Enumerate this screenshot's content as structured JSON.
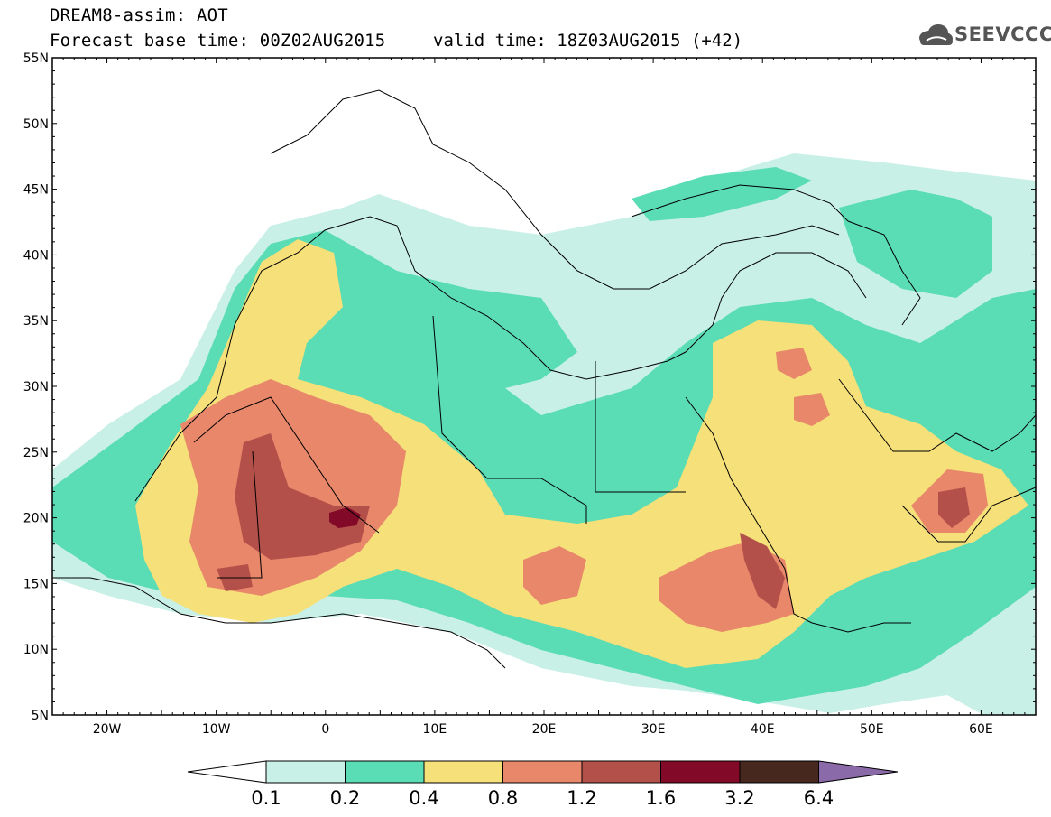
{
  "header": {
    "title": "DREAM8-assim: AOT",
    "base_time": "Forecast base time: 00Z02AUG2015",
    "valid_time": "valid time: 18Z03AUG2015 (+42)",
    "logo_text": "SEEVCCC"
  },
  "map": {
    "lat_labels": [
      "55N",
      "50N",
      "45N",
      "40N",
      "35N",
      "30N",
      "25N",
      "20N",
      "15N",
      "10N",
      "5N"
    ],
    "lon_labels": [
      "20W",
      "10W",
      "0",
      "10E",
      "20E",
      "30E",
      "40E",
      "50E",
      "60E"
    ],
    "extent": {
      "lon": [
        -25,
        65
      ],
      "lat": [
        5,
        55
      ]
    }
  },
  "colorbar": {
    "labels": [
      "0.1",
      "0.2",
      "0.4",
      "0.8",
      "1.2",
      "1.6",
      "3.2",
      "6.4"
    ],
    "colors": [
      "#c8f0e6",
      "#5adcb4",
      "#f5e07a",
      "#e8876a",
      "#b4504a",
      "#820a28",
      "#46281e",
      "#8a6aa8"
    ]
  },
  "colors": {
    "c1": "#c8f0e6",
    "c2": "#5adcb4",
    "c3": "#f5e07a",
    "c4": "#e8876a",
    "c5": "#b4504a",
    "c6": "#820a28",
    "border": "#000000"
  }
}
